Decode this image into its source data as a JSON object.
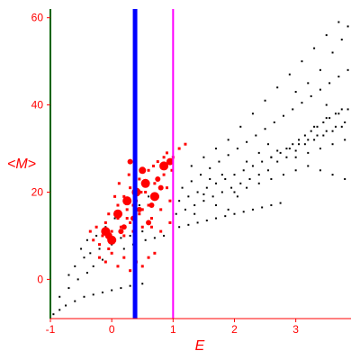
{
  "chart_data": {
    "type": "scatter",
    "xlabel": "<M>",
    "ylabel_note": "",
    "x_axis_label": "E",
    "y_axis_label": "<M>",
    "xlim": [
      -1,
      3.9
    ],
    "ylim": [
      -9,
      62
    ],
    "x_ticks": [
      -1,
      0,
      1,
      2,
      3
    ],
    "y_ticks": [
      0,
      20,
      40,
      60
    ],
    "grid": false,
    "vertical_lines": [
      {
        "x": 0.38,
        "color": "#0000ff",
        "style": "thick"
      },
      {
        "x": 1.0,
        "color": "#ff00ff",
        "style": "thin"
      }
    ],
    "axis_line_color": "#006400",
    "tick_color": "#ff0000",
    "series": [
      {
        "kind": "black-dots",
        "color": "#000000",
        "points": [
          [
            -0.95,
            -8
          ],
          [
            -0.85,
            -7
          ],
          [
            -0.75,
            -6
          ],
          [
            -0.6,
            -5
          ],
          [
            -0.45,
            -4
          ],
          [
            -0.3,
            -3.5
          ],
          [
            -0.15,
            -3
          ],
          [
            0.0,
            -2.5
          ],
          [
            0.15,
            -2
          ],
          [
            0.3,
            -1.5
          ],
          [
            0.5,
            -1
          ],
          [
            -0.85,
            -4
          ],
          [
            -0.7,
            -2
          ],
          [
            -0.55,
            0
          ],
          [
            -0.4,
            1.5
          ],
          [
            -0.3,
            3
          ],
          [
            -0.15,
            4.5
          ],
          [
            0.0,
            6
          ],
          [
            0.2,
            7
          ],
          [
            0.35,
            8
          ],
          [
            0.55,
            9
          ],
          [
            0.7,
            9.5
          ],
          [
            0.85,
            10
          ],
          [
            -0.7,
            1
          ],
          [
            -0.6,
            3
          ],
          [
            -0.45,
            5
          ],
          [
            -0.35,
            6
          ],
          [
            -0.2,
            7
          ],
          [
            0.0,
            8
          ],
          [
            0.15,
            9.5
          ],
          [
            0.3,
            10
          ],
          [
            0.5,
            11
          ],
          [
            -0.5,
            7
          ],
          [
            -0.4,
            9
          ],
          [
            -0.25,
            10
          ],
          [
            -0.1,
            12
          ],
          [
            0.05,
            14
          ],
          [
            0.25,
            16
          ],
          [
            0.45,
            17
          ],
          [
            0.6,
            19
          ],
          [
            0.8,
            21
          ],
          [
            1.1,
            18
          ],
          [
            1.25,
            19
          ],
          [
            1.4,
            20
          ],
          [
            1.55,
            21
          ],
          [
            1.7,
            22
          ],
          [
            1.85,
            23
          ],
          [
            2.0,
            24
          ],
          [
            2.15,
            25
          ],
          [
            2.3,
            26
          ],
          [
            2.45,
            27
          ],
          [
            2.6,
            28
          ],
          [
            2.75,
            29
          ],
          [
            2.9,
            30
          ],
          [
            3.05,
            31
          ],
          [
            3.2,
            32
          ],
          [
            3.35,
            33
          ],
          [
            3.5,
            34
          ],
          [
            3.65,
            35
          ],
          [
            3.8,
            36
          ],
          [
            1.05,
            15
          ],
          [
            1.2,
            16
          ],
          [
            1.35,
            17
          ],
          [
            1.5,
            18
          ],
          [
            1.65,
            19
          ],
          [
            1.8,
            20
          ],
          [
            1.95,
            21
          ],
          [
            2.1,
            22
          ],
          [
            2.25,
            23
          ],
          [
            2.4,
            24
          ],
          [
            2.55,
            25
          ],
          [
            2.7,
            27
          ],
          [
            2.85,
            28
          ],
          [
            3.0,
            29.5
          ],
          [
            3.15,
            31
          ],
          [
            3.3,
            32
          ],
          [
            3.45,
            33
          ],
          [
            3.6,
            34
          ],
          [
            3.75,
            35
          ],
          [
            1.1,
            12
          ],
          [
            1.25,
            12.5
          ],
          [
            1.4,
            13
          ],
          [
            1.55,
            13.5
          ],
          [
            1.7,
            14
          ],
          [
            1.85,
            14.5
          ],
          [
            2.0,
            15
          ],
          [
            2.15,
            15.5
          ],
          [
            2.3,
            16
          ],
          [
            2.45,
            16.5
          ],
          [
            2.6,
            17
          ],
          [
            2.75,
            17.5
          ],
          [
            1.15,
            21
          ],
          [
            1.3,
            22.5
          ],
          [
            1.45,
            24
          ],
          [
            1.6,
            25.5
          ],
          [
            1.75,
            27
          ],
          [
            1.9,
            28.5
          ],
          [
            2.05,
            30
          ],
          [
            2.2,
            31.5
          ],
          [
            2.35,
            33
          ],
          [
            2.5,
            34.5
          ],
          [
            2.65,
            36
          ],
          [
            2.8,
            37.5
          ],
          [
            2.95,
            39
          ],
          [
            3.1,
            40.5
          ],
          [
            3.25,
            42
          ],
          [
            3.4,
            43.5
          ],
          [
            3.55,
            45
          ],
          [
            3.7,
            46.5
          ],
          [
            3.85,
            48
          ],
          [
            1.3,
            26
          ],
          [
            1.5,
            28
          ],
          [
            1.7,
            30
          ],
          [
            1.9,
            32
          ],
          [
            2.1,
            35
          ],
          [
            2.3,
            38
          ],
          [
            2.5,
            41
          ],
          [
            2.7,
            44
          ],
          [
            2.9,
            47
          ],
          [
            3.1,
            50
          ],
          [
            3.3,
            53
          ],
          [
            3.5,
            56
          ],
          [
            3.7,
            59
          ],
          [
            2.0,
            20
          ],
          [
            2.2,
            21
          ],
          [
            2.4,
            22
          ],
          [
            2.6,
            23
          ],
          [
            2.8,
            24
          ],
          [
            3.0,
            25
          ],
          [
            3.2,
            26
          ],
          [
            3.4,
            25
          ],
          [
            3.6,
            24
          ],
          [
            3.8,
            23
          ],
          [
            3.0,
            28
          ],
          [
            3.2,
            29
          ],
          [
            3.4,
            30
          ],
          [
            3.6,
            31
          ],
          [
            3.8,
            32
          ],
          [
            3.5,
            37
          ],
          [
            3.7,
            38
          ],
          [
            3.85,
            39
          ],
          [
            3.3,
            35
          ],
          [
            2.6,
            28
          ],
          [
            2.7,
            29.5
          ],
          [
            2.85,
            30
          ],
          [
            2.95,
            31
          ],
          [
            3.05,
            32
          ],
          [
            3.15,
            33
          ],
          [
            3.25,
            34
          ],
          [
            3.35,
            35
          ],
          [
            3.45,
            36
          ],
          [
            3.55,
            37
          ],
          [
            3.65,
            38
          ],
          [
            3.75,
            39
          ],
          [
            1.35,
            15
          ],
          [
            1.5,
            19.5
          ],
          [
            1.7,
            17
          ],
          [
            1.9,
            16
          ],
          [
            2.05,
            19
          ],
          [
            1.6,
            23
          ],
          [
            1.8,
            24
          ],
          [
            2.2,
            27
          ],
          [
            2.4,
            29
          ],
          [
            2.55,
            31
          ],
          [
            3.4,
            48
          ],
          [
            3.6,
            52
          ],
          [
            3.75,
            55
          ],
          [
            3.85,
            58
          ],
          [
            3.5,
            40
          ],
          [
            3.2,
            45
          ],
          [
            3.0,
            43
          ]
        ]
      },
      {
        "kind": "red-small",
        "color": "#ff0000",
        "points": [
          [
            -0.35,
            11
          ],
          [
            -0.3,
            9
          ],
          [
            -0.25,
            12
          ],
          [
            -0.2,
            8
          ],
          [
            -0.15,
            10
          ],
          [
            -0.1,
            13
          ],
          [
            -0.05,
            7
          ],
          [
            0.0,
            11
          ],
          [
            0.05,
            9
          ],
          [
            0.1,
            14
          ],
          [
            0.15,
            12
          ],
          [
            0.2,
            10
          ],
          [
            0.25,
            16
          ],
          [
            0.3,
            13
          ],
          [
            0.35,
            11
          ],
          [
            0.4,
            18
          ],
          [
            0.45,
            15
          ],
          [
            0.5,
            12
          ],
          [
            0.55,
            20
          ],
          [
            0.6,
            17
          ],
          [
            0.65,
            14
          ],
          [
            0.7,
            22
          ],
          [
            0.75,
            19
          ],
          [
            0.8,
            16
          ],
          [
            0.85,
            24
          ],
          [
            0.9,
            21
          ],
          [
            0.95,
            18
          ],
          [
            -0.2,
            5
          ],
          [
            -0.1,
            4
          ],
          [
            0.0,
            6
          ],
          [
            0.1,
            3
          ],
          [
            0.2,
            5
          ],
          [
            0.3,
            2
          ],
          [
            0.4,
            4
          ],
          [
            0.5,
            3
          ],
          [
            0.6,
            5
          ],
          [
            0.7,
            6
          ],
          [
            0.1,
            17
          ],
          [
            0.2,
            19
          ],
          [
            0.3,
            21
          ],
          [
            0.45,
            23
          ],
          [
            0.6,
            25
          ],
          [
            0.75,
            27
          ],
          [
            0.9,
            29
          ],
          [
            1.0,
            28
          ],
          [
            1.1,
            30
          ],
          [
            1.2,
            31
          ],
          [
            0.05,
            19
          ],
          [
            0.15,
            15
          ],
          [
            0.25,
            14
          ],
          [
            0.35,
            17
          ],
          [
            0.5,
            16
          ],
          [
            0.65,
            12
          ],
          [
            0.8,
            11
          ],
          [
            0.95,
            13
          ],
          [
            -0.05,
            15
          ],
          [
            0.12,
            22
          ],
          [
            0.28,
            24
          ],
          [
            0.48,
            20
          ],
          [
            0.68,
            26
          ],
          [
            0.85,
            28
          ],
          [
            0.98,
            25
          ]
        ]
      },
      {
        "kind": "red-large",
        "color": "#ff0000",
        "points": [
          [
            -0.1,
            11,
            5
          ],
          [
            0.0,
            9,
            5
          ],
          [
            0.1,
            15,
            5
          ],
          [
            -0.05,
            10,
            4
          ],
          [
            0.25,
            18,
            5
          ],
          [
            0.4,
            20,
            5
          ],
          [
            0.55,
            22,
            5
          ],
          [
            0.7,
            19,
            5
          ],
          [
            0.85,
            26,
            5
          ],
          [
            0.95,
            27,
            4
          ],
          [
            0.2,
            12,
            3
          ],
          [
            0.45,
            16,
            3
          ],
          [
            0.6,
            13,
            3
          ],
          [
            0.75,
            23,
            3
          ],
          [
            0.35,
            14,
            3
          ],
          [
            0.15,
            11,
            3
          ],
          [
            0.65,
            17,
            3
          ],
          [
            0.8,
            21,
            3
          ],
          [
            0.5,
            25,
            4
          ],
          [
            0.3,
            27,
            3
          ]
        ]
      }
    ]
  }
}
